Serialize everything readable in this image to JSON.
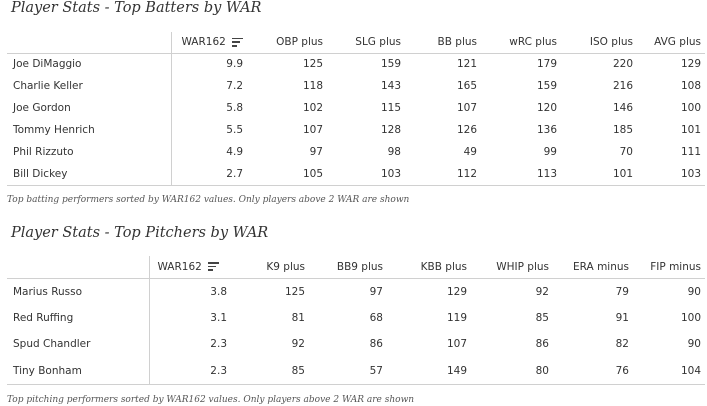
{
  "batters": {
    "title": "Player Stats - Top Batters by WAR",
    "columns": [
      "WAR162",
      "OBP plus",
      "SLG plus",
      "BB plus",
      "wRC plus",
      "ISO plus",
      "AVG plus"
    ],
    "sort_icon": "sort-descending-icon",
    "rows": [
      {
        "name": "Joe DiMaggio",
        "values": [
          "9.9",
          "125",
          "159",
          "121",
          "179",
          "220",
          "129"
        ]
      },
      {
        "name": "Charlie Keller",
        "values": [
          "7.2",
          "118",
          "143",
          "165",
          "159",
          "216",
          "108"
        ]
      },
      {
        "name": "Joe Gordon",
        "values": [
          "5.8",
          "102",
          "115",
          "107",
          "120",
          "146",
          "100"
        ]
      },
      {
        "name": "Tommy Henrich",
        "values": [
          "5.5",
          "107",
          "128",
          "126",
          "136",
          "185",
          "101"
        ]
      },
      {
        "name": "Phil Rizzuto",
        "values": [
          "4.9",
          "97",
          "98",
          "49",
          "99",
          "70",
          "111"
        ]
      },
      {
        "name": "Bill Dickey",
        "values": [
          "2.7",
          "105",
          "103",
          "112",
          "113",
          "101",
          "103"
        ]
      }
    ],
    "caption": "Top batting performers sorted by WAR162 values. Only players above 2 WAR are shown"
  },
  "pitchers": {
    "title": "Player Stats - Top Pitchers by WAR",
    "columns": [
      "WAR162",
      "K9 plus",
      "BB9 plus",
      "KBB plus",
      "WHIP plus",
      "ERA minus",
      "FIP minus"
    ],
    "sort_icon": "sort-descending-icon",
    "rows": [
      {
        "name": "Marius Russo",
        "values": [
          "3.8",
          "125",
          "97",
          "129",
          "92",
          "79",
          "90"
        ]
      },
      {
        "name": "Red Ruffing",
        "values": [
          "3.1",
          "81",
          "68",
          "119",
          "85",
          "91",
          "100"
        ]
      },
      {
        "name": "Spud Chandler",
        "values": [
          "2.3",
          "92",
          "86",
          "107",
          "86",
          "82",
          "90"
        ]
      },
      {
        "name": "Tiny Bonham",
        "values": [
          "2.3",
          "85",
          "57",
          "149",
          "80",
          "76",
          "104"
        ]
      }
    ],
    "caption": "Top pitching performers sorted by WAR162 values. Only players above 2 WAR are shown"
  }
}
